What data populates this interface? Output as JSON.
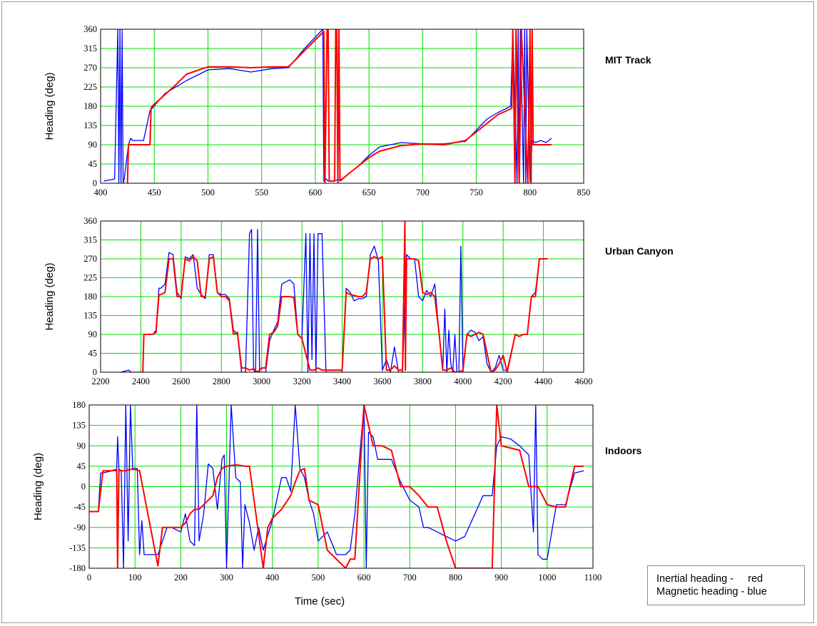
{
  "colors": {
    "inertial": "#ff0000",
    "magnetic": "#0000ff",
    "grid": "#00e000",
    "axis": "#000000"
  },
  "legend": {
    "line1": "Inertial heading -     red",
    "line2": "Magnetic heading - blue"
  },
  "chart_data": [
    {
      "type": "line",
      "title": "MIT Track",
      "xlabel": "",
      "ylabel": "Heading (deg)",
      "xlim": [
        400,
        850
      ],
      "ylim": [
        0,
        360
      ],
      "xticks": [
        "400",
        "450",
        "500",
        "550",
        "600",
        "650",
        "700",
        "750",
        "800",
        "850"
      ],
      "yticks": [
        "0",
        "45",
        "90",
        "135",
        "180",
        "225",
        "270",
        "315",
        "360"
      ],
      "grid": true,
      "series": [
        {
          "color": "red",
          "x": [
            425,
            426,
            446,
            447,
            448,
            470,
            480,
            500,
            520,
            540,
            560,
            575,
            590,
            608,
            609,
            611,
            612,
            613,
            614,
            618,
            619,
            620,
            621,
            622,
            623,
            630,
            650,
            660,
            680,
            700,
            720,
            740,
            760,
            770,
            783,
            784,
            786,
            787,
            790,
            792,
            798,
            800,
            801,
            802,
            803,
            810,
            820
          ],
          "y": [
            0,
            90,
            90,
            175,
            180,
            230,
            255,
            272,
            272,
            270,
            272,
            272,
            310,
            355,
            0,
            360,
            360,
            5,
            5,
            5,
            360,
            360,
            0,
            360,
            5,
            20,
            60,
            75,
            88,
            92,
            90,
            100,
            140,
            160,
            175,
            360,
            0,
            360,
            0,
            360,
            0,
            360,
            0,
            360,
            90,
            90,
            90
          ]
        },
        {
          "color": "blue",
          "x": [
            403,
            413,
            416,
            417,
            418,
            419,
            420,
            421,
            422,
            426,
            428,
            430,
            440,
            446,
            448,
            460,
            480,
            500,
            520,
            540,
            560,
            575,
            590,
            607,
            608,
            610,
            612,
            615,
            625,
            640,
            650,
            660,
            680,
            700,
            720,
            740,
            760,
            770,
            782,
            784,
            788,
            789,
            790,
            791,
            794,
            795,
            796,
            797,
            800,
            802,
            805,
            810,
            815,
            820
          ],
          "y": [
            5,
            10,
            360,
            0,
            360,
            0,
            360,
            0,
            10,
            90,
            105,
            100,
            100,
            170,
            175,
            210,
            240,
            265,
            268,
            260,
            268,
            270,
            315,
            360,
            5,
            10,
            5,
            5,
            10,
            40,
            65,
            85,
            95,
            92,
            92,
            98,
            150,
            165,
            180,
            360,
            0,
            360,
            0,
            360,
            0,
            360,
            0,
            360,
            5,
            100,
            95,
            100,
            95,
            105
          ]
        }
      ]
    },
    {
      "type": "line",
      "title": "Urban Canyon",
      "xlabel": "",
      "ylabel": "Heading (deg)",
      "xlim": [
        2200,
        4600
      ],
      "ylim": [
        0,
        360
      ],
      "xticks": [
        "2200",
        "2400",
        "2600",
        "2800",
        "3000",
        "3200",
        "3400",
        "3600",
        "3800",
        "4000",
        "4200",
        "4400",
        "4600"
      ],
      "yticks": [
        "0",
        "45",
        "90",
        "135",
        "180",
        "225",
        "270",
        "315",
        "360"
      ],
      "grid": true,
      "series": [
        {
          "color": "red",
          "x": [
            2410,
            2415,
            2460,
            2475,
            2490,
            2500,
            2520,
            2540,
            2560,
            2580,
            2600,
            2620,
            2640,
            2660,
            2680,
            2700,
            2720,
            2740,
            2760,
            2780,
            2800,
            2820,
            2840,
            2860,
            2880,
            2900,
            2920,
            2940,
            2960,
            2980,
            3000,
            3020,
            3040,
            3060,
            3080,
            3100,
            3120,
            3140,
            3160,
            3180,
            3200,
            3240,
            3260,
            3280,
            3300,
            3340,
            3380,
            3400,
            3420,
            3440,
            3480,
            3500,
            3520,
            3540,
            3560,
            3580,
            3600,
            3620,
            3640,
            3660,
            3680,
            3700,
            3712,
            3714,
            3720,
            3760,
            3780,
            3800,
            3820,
            3840,
            3860,
            3880,
            3900,
            3920,
            3940,
            3960,
            3980,
            4000,
            4020,
            4040,
            4060,
            4080,
            4100,
            4120,
            4140,
            4160,
            4180,
            4200,
            4220,
            4260,
            4280,
            4300,
            4320,
            4340,
            4360,
            4380,
            4400,
            4420
          ],
          "y": [
            0,
            90,
            90,
            95,
            185,
            185,
            190,
            270,
            270,
            180,
            180,
            270,
            265,
            275,
            265,
            180,
            180,
            270,
            275,
            190,
            180,
            180,
            170,
            90,
            95,
            10,
            10,
            5,
            8,
            0,
            10,
            10,
            90,
            95,
            110,
            180,
            180,
            180,
            178,
            90,
            80,
            5,
            5,
            10,
            5,
            5,
            5,
            5,
            190,
            185,
            180,
            180,
            190,
            270,
            275,
            270,
            275,
            5,
            5,
            15,
            5,
            5,
            360,
            5,
            270,
            270,
            265,
            190,
            185,
            190,
            180,
            100,
            5,
            5,
            10,
            0,
            0,
            5,
            90,
            85,
            90,
            95,
            90,
            45,
            0,
            5,
            20,
            40,
            0,
            90,
            85,
            90,
            90,
            180,
            180,
            270,
            270,
            270
          ]
        },
        {
          "color": "blue",
          "x": [
            2300,
            2340,
            2350,
            2400,
            2410,
            2415,
            2460,
            2475,
            2490,
            2500,
            2520,
            2540,
            2560,
            2580,
            2600,
            2620,
            2640,
            2660,
            2680,
            2700,
            2720,
            2740,
            2760,
            2780,
            2800,
            2820,
            2840,
            2860,
            2880,
            2900,
            2920,
            2940,
            2950,
            2960,
            2970,
            2980,
            2990,
            3000,
            3020,
            3040,
            3060,
            3080,
            3100,
            3120,
            3140,
            3160,
            3180,
            3200,
            3220,
            3230,
            3240,
            3250,
            3260,
            3270,
            3280,
            3290,
            3300,
            3320,
            3340,
            3360,
            3400,
            3420,
            3440,
            3460,
            3480,
            3500,
            3520,
            3540,
            3560,
            3580,
            3600,
            3620,
            3640,
            3660,
            3680,
            3700,
            3720,
            3740,
            3760,
            3780,
            3800,
            3820,
            3840,
            3860,
            3880,
            3900,
            3910,
            3920,
            3930,
            3940,
            3950,
            3960,
            3970,
            3980,
            3990,
            4000,
            4020,
            4040,
            4060,
            4080,
            4100,
            4120,
            4140,
            4160,
            4180,
            4200,
            4220,
            4260,
            4280,
            4300,
            4320,
            4340,
            4360,
            4380,
            4400,
            4420
          ],
          "y": [
            0,
            5,
            0,
            0,
            0,
            90,
            90,
            100,
            200,
            200,
            210,
            285,
            280,
            190,
            175,
            275,
            270,
            280,
            200,
            185,
            175,
            280,
            280,
            190,
            185,
            185,
            175,
            100,
            90,
            0,
            0,
            330,
            340,
            5,
            0,
            340,
            0,
            0,
            0,
            75,
            100,
            120,
            210,
            215,
            220,
            210,
            90,
            80,
            330,
            0,
            330,
            30,
            330,
            0,
            330,
            330,
            330,
            0,
            0,
            0,
            0,
            200,
            190,
            170,
            175,
            175,
            180,
            280,
            300,
            265,
            5,
            30,
            0,
            60,
            0,
            0,
            280,
            270,
            270,
            180,
            170,
            195,
            180,
            210,
            100,
            5,
            150,
            0,
            100,
            20,
            0,
            90,
            0,
            0,
            300,
            0,
            90,
            100,
            95,
            75,
            85,
            20,
            0,
            10,
            40,
            5,
            5,
            90,
            85,
            90,
            90,
            180,
            190,
            270,
            270,
            270
          ]
        }
      ]
    },
    {
      "type": "line",
      "title": "Indoors",
      "xlabel": "Time (sec)",
      "ylabel": "Heading (deg)",
      "xlim": [
        0,
        1100
      ],
      "ylim": [
        -180,
        180
      ],
      "xticks": [
        "0",
        "100",
        "200",
        "300",
        "400",
        "500",
        "600",
        "700",
        "800",
        "900",
        "1000",
        "1100"
      ],
      "yticks": [
        "180",
        "135",
        "90",
        "45",
        "0",
        "-45",
        "-90",
        "-135",
        "-180"
      ],
      "grid": true,
      "series": [
        {
          "color": "red",
          "x": [
            0,
            20,
            30,
            50,
            60,
            62,
            65,
            70,
            80,
            90,
            95,
            100,
            110,
            150,
            160,
            170,
            200,
            210,
            220,
            230,
            240,
            270,
            280,
            290,
            300,
            320,
            340,
            350,
            380,
            390,
            400,
            420,
            440,
            450,
            460,
            470,
            480,
            500,
            520,
            560,
            570,
            580,
            600,
            620,
            640,
            660,
            680,
            700,
            720,
            740,
            760,
            780,
            800,
            820,
            880,
            890,
            900,
            920,
            940,
            960,
            980,
            1000,
            1020,
            1040,
            1060,
            1080
          ],
          "y": [
            -55,
            -55,
            35,
            35,
            38,
            -180,
            38,
            35,
            35,
            38,
            38,
            38,
            35,
            -175,
            -90,
            -90,
            -90,
            -80,
            -60,
            -50,
            -50,
            -20,
            20,
            40,
            45,
            48,
            45,
            45,
            -180,
            -90,
            -70,
            -50,
            -20,
            10,
            35,
            40,
            -30,
            -40,
            -140,
            -180,
            -160,
            -160,
            180,
            90,
            90,
            80,
            0,
            0,
            -20,
            -45,
            -45,
            -120,
            -180,
            -180,
            -180,
            180,
            90,
            85,
            80,
            0,
            0,
            -40,
            -45,
            -45,
            45,
            45
          ]
        },
        {
          "color": "blue",
          "x": [
            0,
            20,
            25,
            30,
            50,
            60,
            62,
            65,
            70,
            75,
            80,
            85,
            90,
            95,
            100,
            105,
            110,
            115,
            120,
            125,
            130,
            150,
            160,
            170,
            180,
            200,
            210,
            220,
            230,
            235,
            240,
            250,
            260,
            270,
            280,
            290,
            295,
            300,
            310,
            320,
            330,
            335,
            340,
            350,
            360,
            370,
            380,
            400,
            420,
            430,
            440,
            450,
            460,
            470,
            480,
            490,
            500,
            520,
            540,
            560,
            570,
            580,
            600,
            605,
            610,
            620,
            630,
            640,
            660,
            680,
            700,
            720,
            730,
            740,
            760,
            780,
            800,
            820,
            860,
            880,
            890,
            900,
            920,
            940,
            960,
            970,
            975,
            980,
            990,
            1000,
            1020,
            1040,
            1060,
            1080
          ],
          "y": [
            -55,
            -55,
            30,
            30,
            35,
            35,
            110,
            35,
            35,
            -180,
            180,
            -120,
            180,
            40,
            40,
            40,
            -150,
            -75,
            -150,
            -150,
            -150,
            -150,
            -120,
            -90,
            -90,
            -100,
            -60,
            -120,
            -130,
            180,
            -120,
            -60,
            50,
            40,
            -50,
            60,
            70,
            -180,
            180,
            20,
            10,
            -180,
            -40,
            -80,
            -140,
            -90,
            -140,
            -75,
            20,
            20,
            -10,
            180,
            40,
            20,
            -30,
            -60,
            -120,
            -100,
            -150,
            -150,
            -140,
            -60,
            180,
            -180,
            120,
            110,
            60,
            60,
            60,
            10,
            -30,
            -45,
            -90,
            -90,
            -100,
            -110,
            -120,
            -110,
            -20,
            -20,
            90,
            110,
            105,
            90,
            70,
            -100,
            180,
            -150,
            -160,
            -160,
            -40,
            -40,
            30,
            35
          ]
        }
      ]
    }
  ]
}
